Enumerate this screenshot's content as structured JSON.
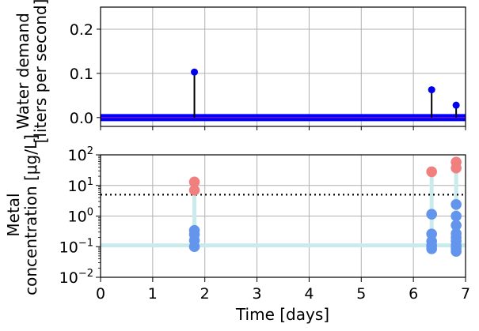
{
  "chart_data": [
    {
      "type": "stem",
      "ylabel_lines": [
        "Water demand",
        "[liters per second]"
      ],
      "xlim": [
        0,
        7
      ],
      "ylim": [
        -0.02,
        0.25
      ],
      "yticks": [
        "0.0",
        "0.1",
        "0.2"
      ],
      "ytick_values": [
        0.0,
        0.1,
        0.2
      ],
      "baseline_color": "#0000ff",
      "baseline_value": 0.0,
      "stem_color": "#000000",
      "marker_color": "#0000ee",
      "points": [
        {
          "x": 1.8,
          "y": 0.103
        },
        {
          "x": 6.35,
          "y": 0.063
        },
        {
          "x": 6.82,
          "y": 0.028
        }
      ]
    },
    {
      "type": "scatter",
      "ylabel_lines": [
        "Metal",
        "concentration [μg/L]"
      ],
      "xlabel": "Time [days]",
      "xlim": [
        0,
        7
      ],
      "ylim": [
        0.01,
        100
      ],
      "yscale": "log",
      "xticks": [
        "0",
        "1",
        "2",
        "3",
        "4",
        "5",
        "6",
        "7"
      ],
      "ytick_base": "10",
      "ytick_exponents": [
        "−2",
        "−1",
        "0",
        "1",
        "2"
      ],
      "threshold": 5,
      "threshold_style": "dotted",
      "baseline_value": 0.11,
      "baseline_color": "#c9ebeb",
      "below_color": "#6495ed",
      "above_color": "#f08080",
      "events": [
        {
          "x": 1.8,
          "values": [
            0.1,
            0.16,
            0.25,
            0.34,
            7,
            13
          ]
        },
        {
          "x": 6.35,
          "values": [
            0.085,
            0.11,
            0.15,
            0.26,
            1.15,
            28
          ]
        },
        {
          "x": 6.82,
          "values": [
            0.07,
            0.09,
            0.11,
            0.15,
            0.2,
            0.27,
            0.5,
            1.0,
            2.4,
            37,
            58
          ]
        }
      ]
    }
  ]
}
